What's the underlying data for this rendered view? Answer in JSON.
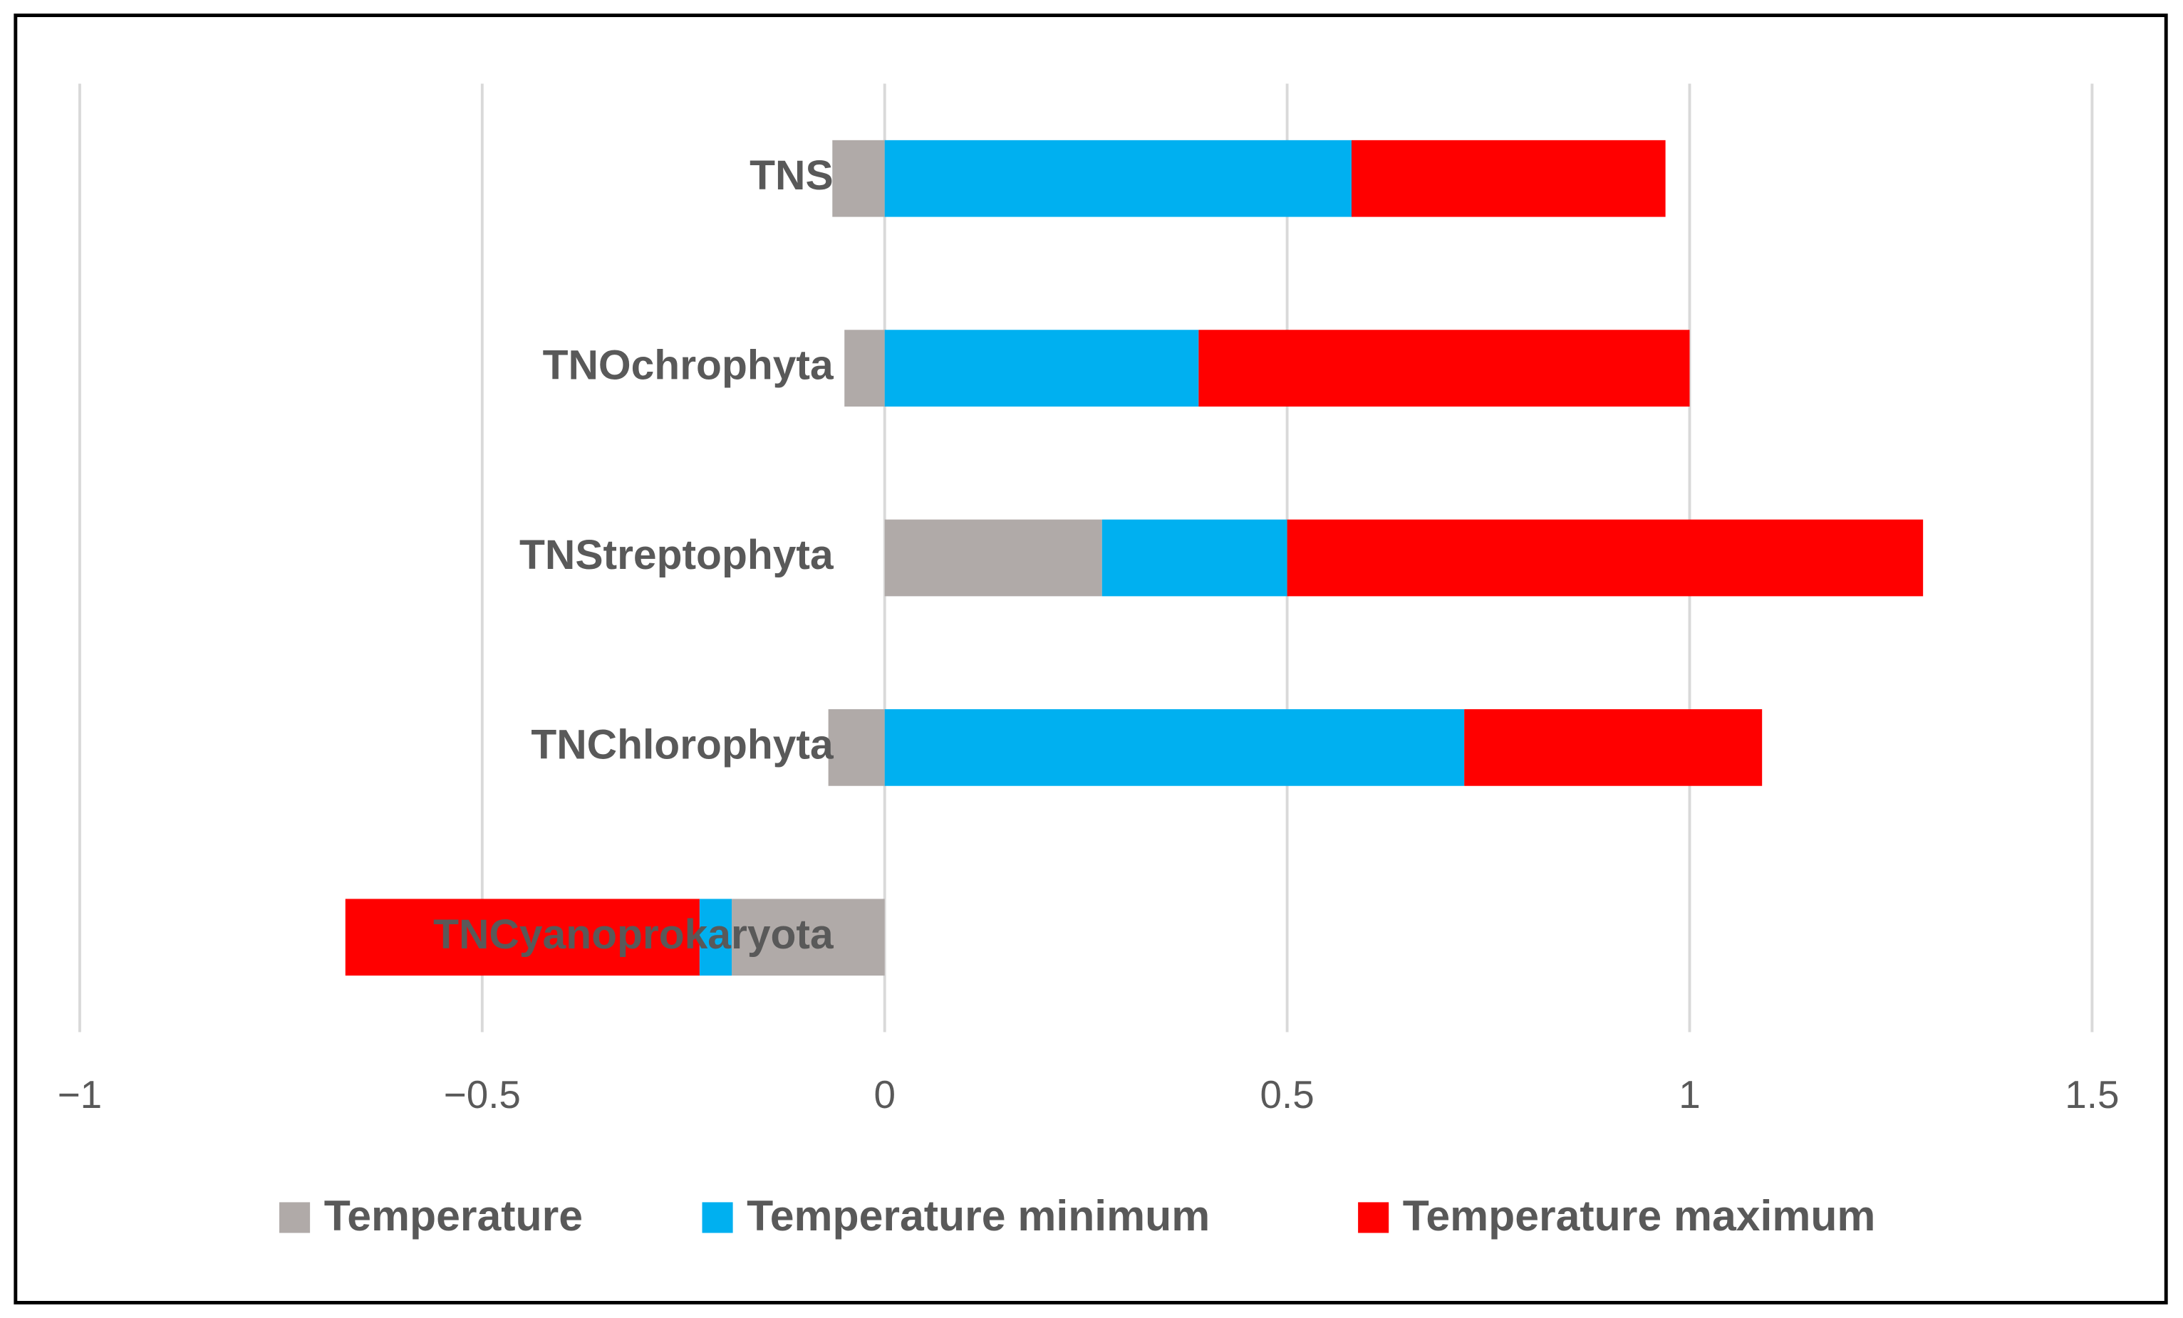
{
  "chart_data": {
    "type": "stacked-barh",
    "categories": [
      "TNCyanoprokaryota",
      "TNChlorophyta",
      "TNStreptophyta",
      "TNOchrophyta",
      "TNS"
    ],
    "series": [
      {
        "name": "Temperature",
        "color": "#b0aaa8",
        "values": [
          -0.19,
          -0.07,
          0.27,
          -0.05,
          -0.065
        ]
      },
      {
        "name": "Temperature minimum",
        "color": "#00b0f0",
        "values": [
          -0.04,
          0.72,
          0.23,
          0.39,
          0.58
        ]
      },
      {
        "name": "Temperature maximum",
        "color": "#ff0000",
        "values": [
          -0.44,
          0.37,
          0.79,
          0.61,
          0.39
        ]
      }
    ],
    "xlim": [
      -1,
      1.5
    ],
    "xticks": [
      {
        "value": -1,
        "label": "−1"
      },
      {
        "value": -0.5,
        "label": "−0.5"
      },
      0,
      0.5,
      1,
      1.5
    ],
    "grid": true,
    "legend": "bottom"
  }
}
